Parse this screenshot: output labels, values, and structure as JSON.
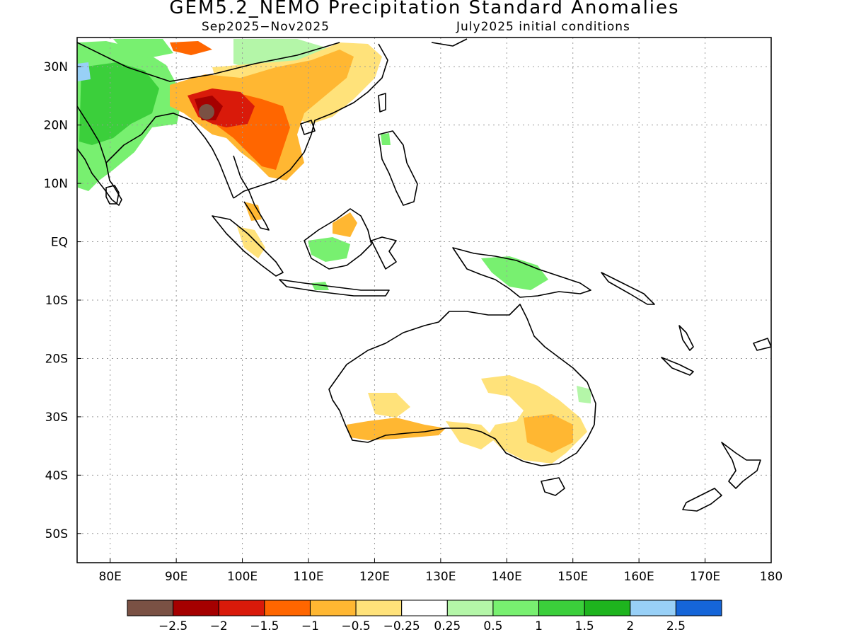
{
  "title": "GEM5.2_NEMO Precipitation Standard Anomalies",
  "subtitle_left": "Sep2025−Nov2025",
  "subtitle_right": "July2025 initial conditions",
  "map": {
    "lon_range": [
      75,
      180
    ],
    "lat_range": [
      -55,
      35
    ],
    "lon_ticks": [
      {
        "value": 80,
        "label": "80E"
      },
      {
        "value": 90,
        "label": "90E"
      },
      {
        "value": 100,
        "label": "100E"
      },
      {
        "value": 110,
        "label": "110E"
      },
      {
        "value": 120,
        "label": "120E"
      },
      {
        "value": 130,
        "label": "130E"
      },
      {
        "value": 140,
        "label": "140E"
      },
      {
        "value": 150,
        "label": "150E"
      },
      {
        "value": 160,
        "label": "160E"
      },
      {
        "value": 170,
        "label": "170E"
      },
      {
        "value": 180,
        "label": "180"
      }
    ],
    "lat_ticks": [
      {
        "value": 30,
        "label": "30N"
      },
      {
        "value": 20,
        "label": "20N"
      },
      {
        "value": 10,
        "label": "10N"
      },
      {
        "value": 0,
        "label": "EQ"
      },
      {
        "value": -10,
        "label": "10S"
      },
      {
        "value": -20,
        "label": "20S"
      },
      {
        "value": -30,
        "label": "30S"
      },
      {
        "value": -40,
        "label": "40S"
      },
      {
        "value": -50,
        "label": "50S"
      }
    ],
    "grid": "dotted",
    "coastline_color": "#000000"
  },
  "colorbar": {
    "colors": [
      "#7a5144",
      "#a50000",
      "#d91a0a",
      "#ff6600",
      "#ffb732",
      "#ffe27a",
      "#ffffff",
      "#b4f6a8",
      "#78f070",
      "#3bcf3b",
      "#1eb41e",
      "#98d0f7",
      "#1565d8"
    ],
    "labels": [
      "−2.5",
      "−2",
      "−1.5",
      "−1",
      "−0.5",
      "−0.25",
      "0.25",
      "0.5",
      "1",
      "1.5",
      "2",
      "2.5"
    ]
  }
}
